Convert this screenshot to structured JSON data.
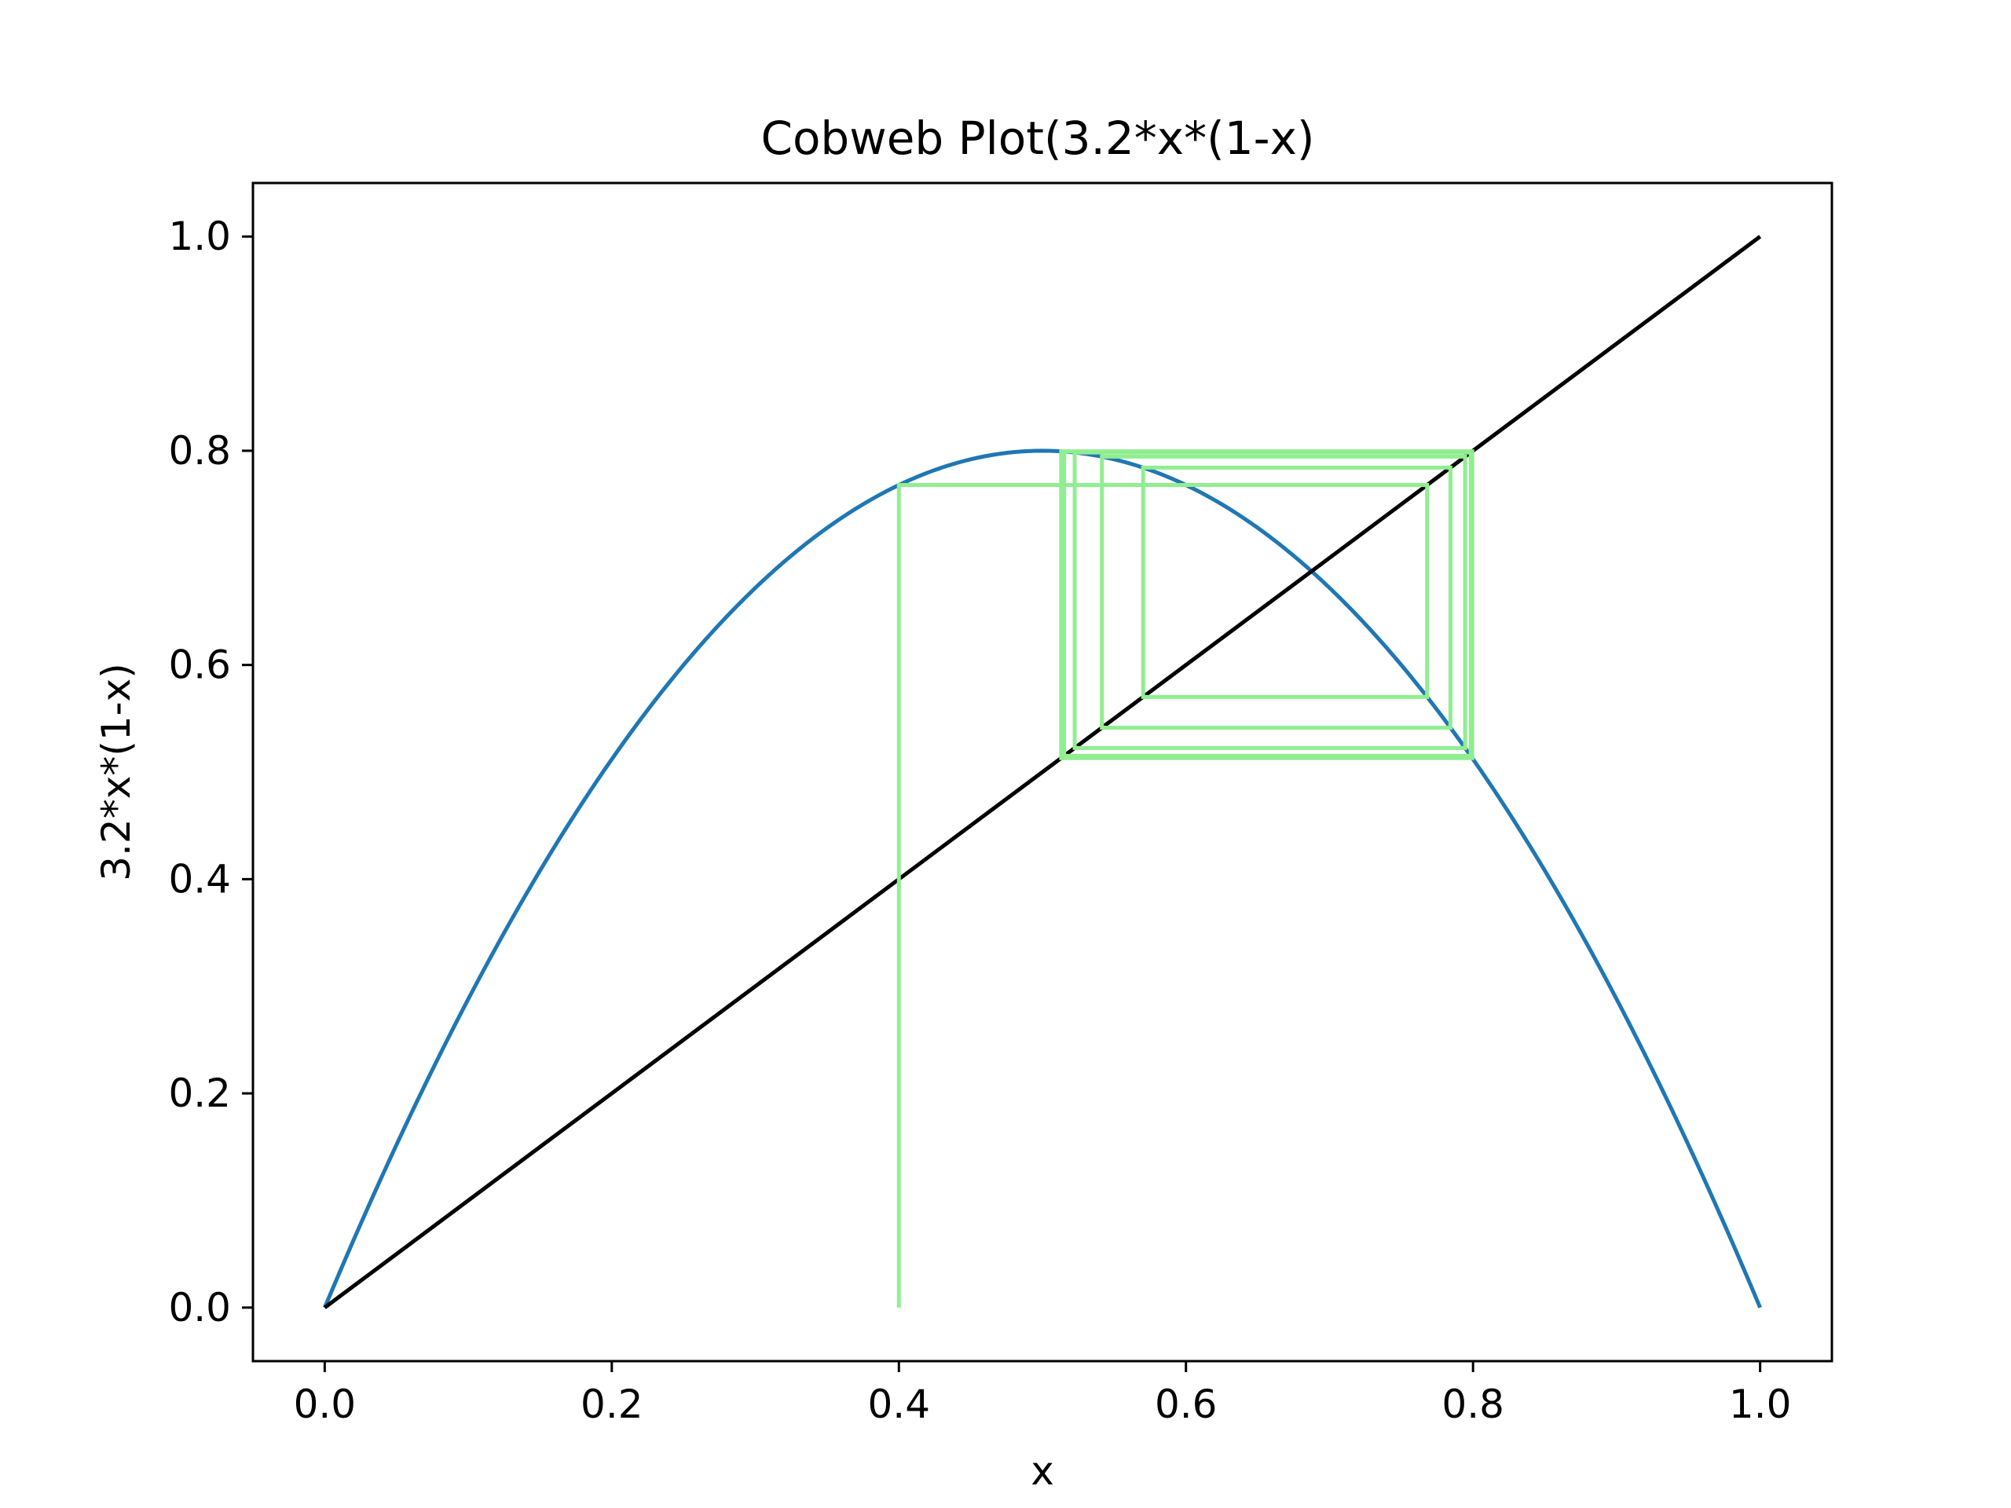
{
  "chart_data": {
    "type": "line",
    "title": "Cobweb Plot(3.2*x*(1-x)",
    "xlabel": "x",
    "ylabel": "3.2*x*(1-x)",
    "xlim": [
      -0.05,
      1.05
    ],
    "ylim": [
      -0.05,
      1.05
    ],
    "xticks": [
      "0.0",
      "0.2",
      "0.4",
      "0.6",
      "0.8",
      "1.0"
    ],
    "yticks": [
      "0.0",
      "0.2",
      "0.4",
      "0.6",
      "0.8",
      "1.0"
    ],
    "grid": false,
    "legend": "none",
    "r": 3.2,
    "x0": 0.4,
    "iterations": 40,
    "series": [
      {
        "kind": "function",
        "expression": "3.2*x*(1-x)",
        "domain": [
          0,
          1
        ],
        "color": "#1f77b4"
      },
      {
        "kind": "identity",
        "expression": "x",
        "domain": [
          0,
          1
        ],
        "color": "#000000"
      },
      {
        "kind": "cobweb",
        "start": 0.4,
        "color": "#90ee90"
      }
    ]
  }
}
